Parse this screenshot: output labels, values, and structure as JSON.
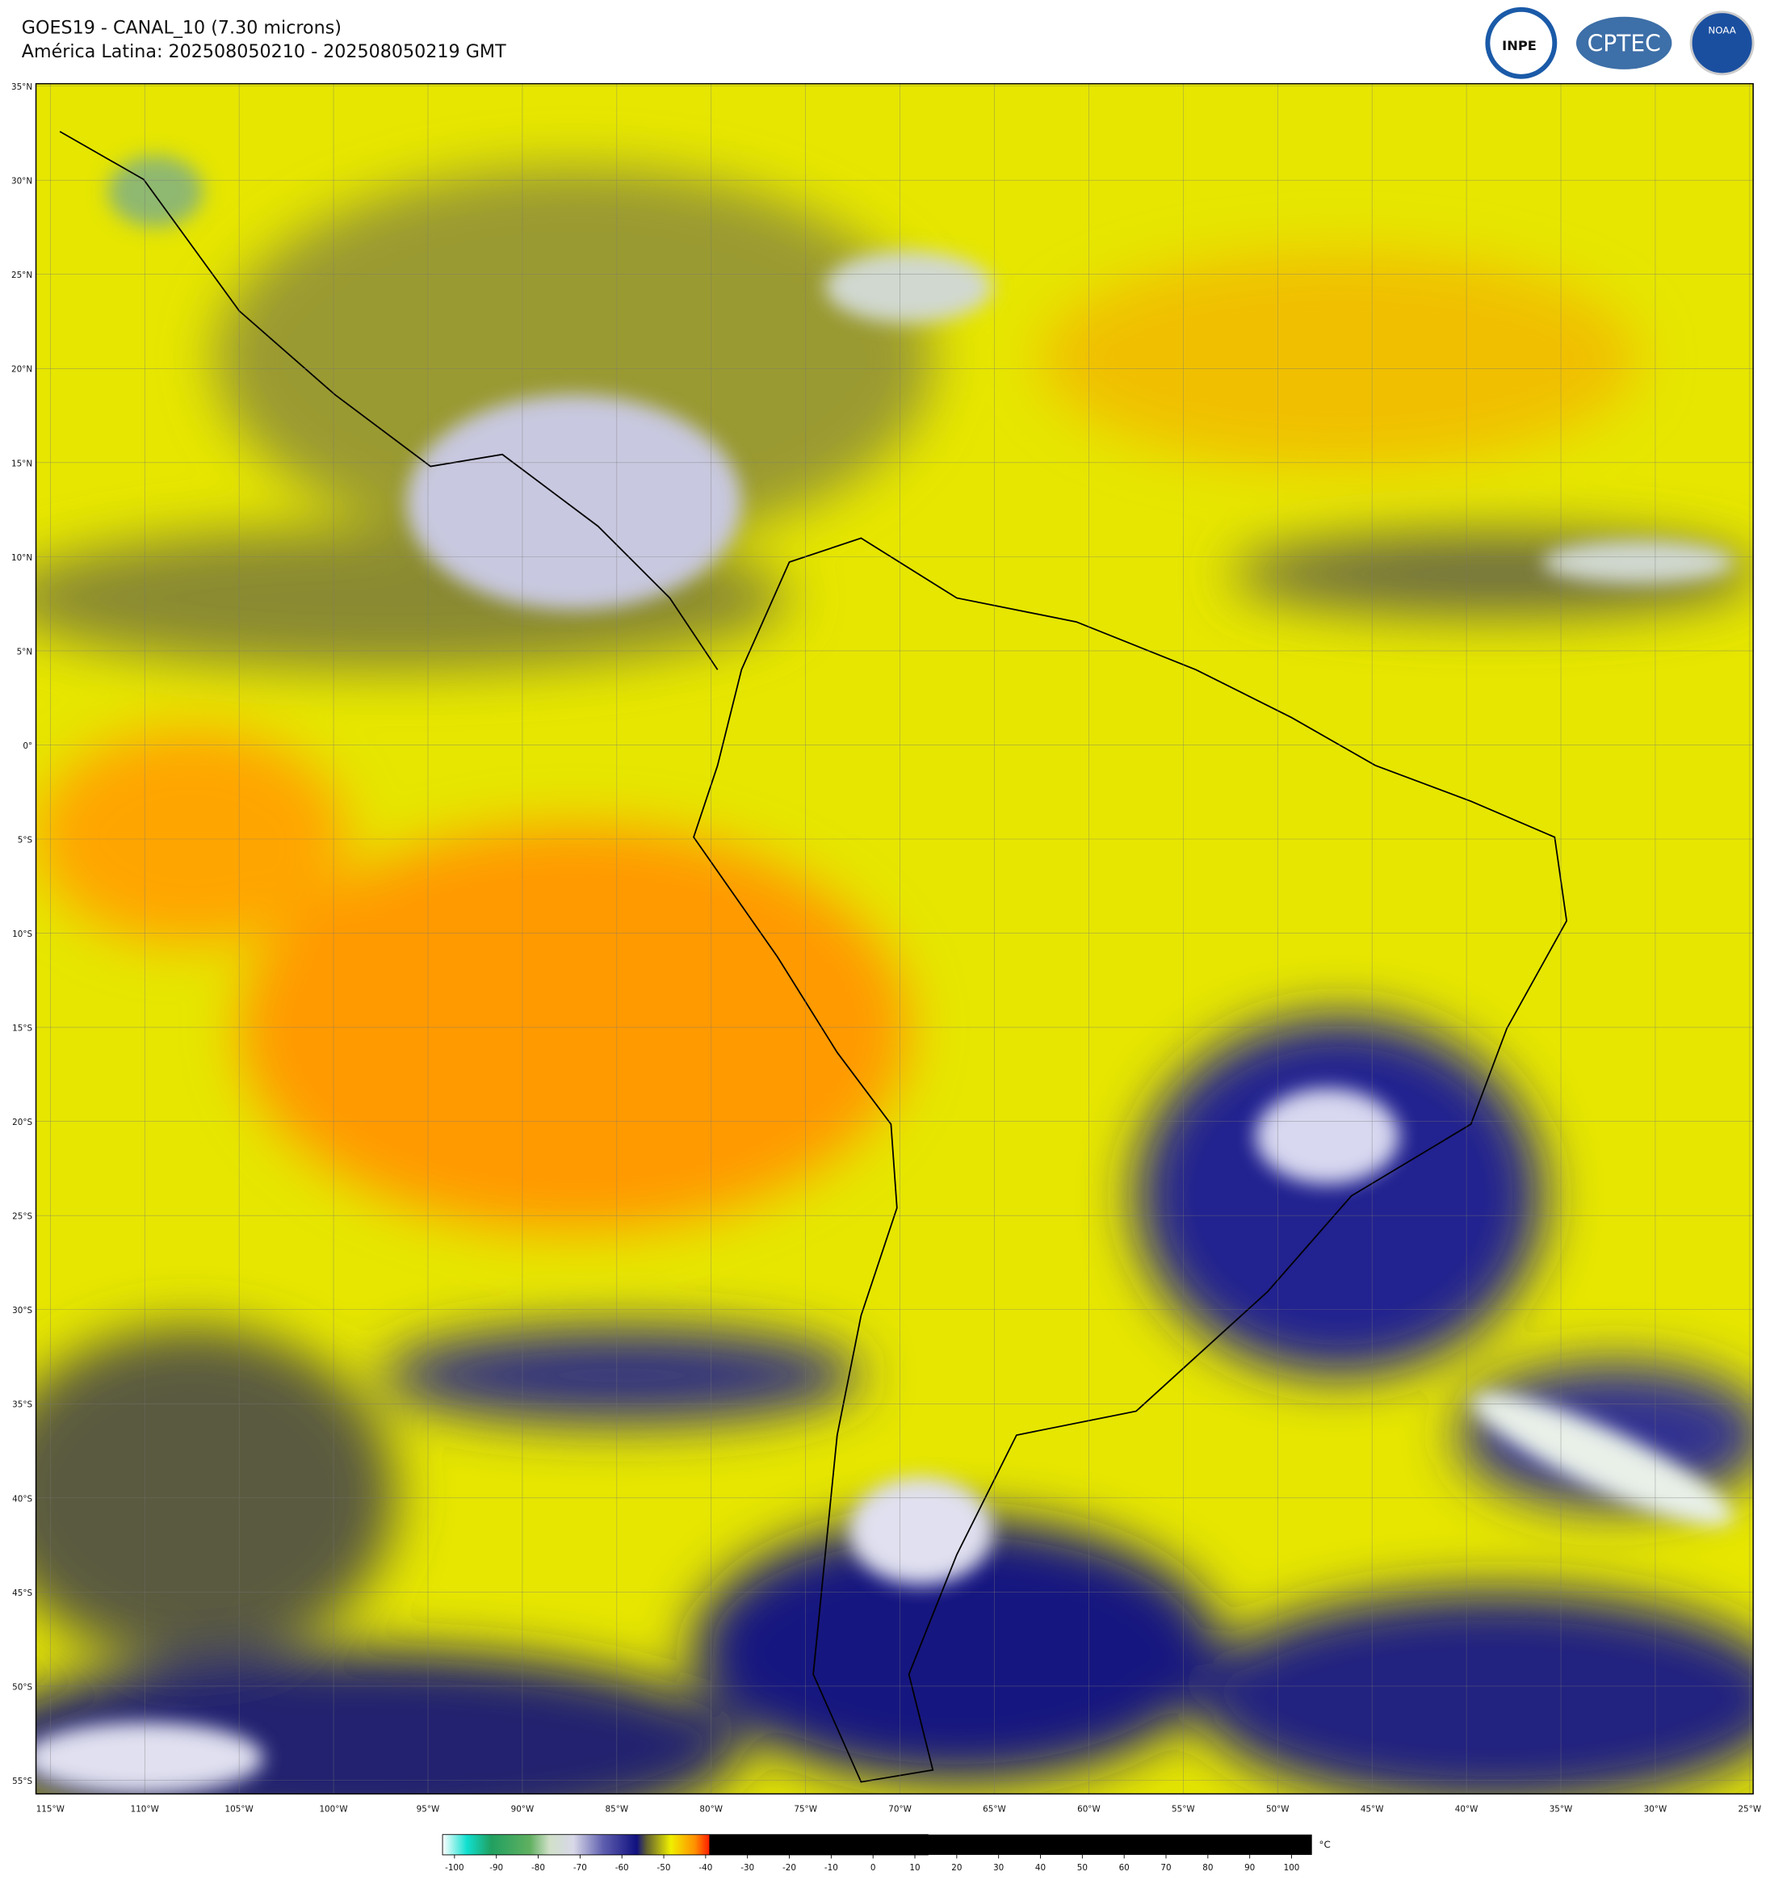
{
  "header": {
    "title": "GOES19 - CANAL_10 (7.30 microns)",
    "subtitle": "América Latina: 202508050210 - 202508050219 GMT"
  },
  "logos": [
    "INPE",
    "CPTEC",
    "NOAA"
  ],
  "map": {
    "lat_labels": [
      "35°N",
      "30°N",
      "25°N",
      "20°N",
      "15°N",
      "10°N",
      "5°N",
      "0°",
      "5°S",
      "10°S",
      "15°S",
      "20°S",
      "25°S",
      "30°S",
      "35°S",
      "40°S",
      "45°S",
      "50°S",
      "55°S"
    ],
    "lon_labels": [
      "115°W",
      "110°W",
      "105°W",
      "100°W",
      "95°W",
      "90°W",
      "85°W",
      "80°W",
      "75°W",
      "70°W",
      "65°W",
      "60°W",
      "55°W",
      "50°W",
      "45°W",
      "40°W",
      "35°W",
      "30°W",
      "25°W"
    ]
  },
  "colorbar": {
    "ticks": [
      -100,
      -90,
      -80,
      -70,
      -60,
      -50,
      -40,
      -30,
      -20,
      -10,
      0,
      10,
      20,
      30,
      40,
      50,
      60,
      70,
      80,
      90,
      100
    ],
    "unit": "°C"
  }
}
